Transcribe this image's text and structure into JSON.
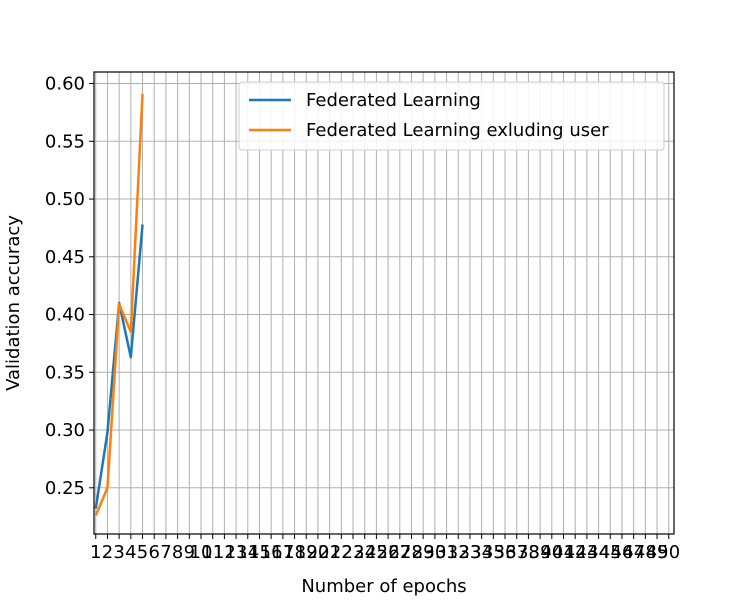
{
  "chart_data": {
    "type": "line",
    "title": "",
    "xlabel": "Number of epochs",
    "ylabel": "Validation accuracy",
    "x_ticks": [
      "1",
      "2",
      "3",
      "4",
      "5",
      "6",
      "7",
      "8",
      "9",
      "10",
      "11",
      "12",
      "13",
      "14",
      "15",
      "16",
      "17",
      "18",
      "19",
      "20",
      "21",
      "22",
      "23",
      "24",
      "25",
      "26",
      "27",
      "28",
      "29",
      "30",
      "31",
      "32",
      "33",
      "34",
      "35",
      "36",
      "37",
      "38",
      "39",
      "40",
      "41",
      "42",
      "43",
      "44",
      "45",
      "46",
      "47",
      "48",
      "49",
      "50"
    ],
    "xlim": [
      0.85,
      50.45
    ],
    "ylim": [
      0.21,
      0.61
    ],
    "y_ticks": [
      "0.25",
      "0.30",
      "0.35",
      "0.40",
      "0.45",
      "0.50",
      "0.55",
      "0.60"
    ],
    "grid": true,
    "legend_position": "top-right",
    "series": [
      {
        "name": "Federated Learning",
        "color": "#1f77b4",
        "x": [
          1,
          2,
          3,
          4,
          5
        ],
        "y": [
          0.232,
          0.298,
          0.41,
          0.363,
          0.478
        ]
      },
      {
        "name": "Federated Learning exluding user",
        "color": "#ff7f0e",
        "x": [
          1,
          2,
          3,
          4,
          5
        ],
        "y": [
          0.226,
          0.25,
          0.409,
          0.385,
          0.591
        ]
      }
    ]
  }
}
